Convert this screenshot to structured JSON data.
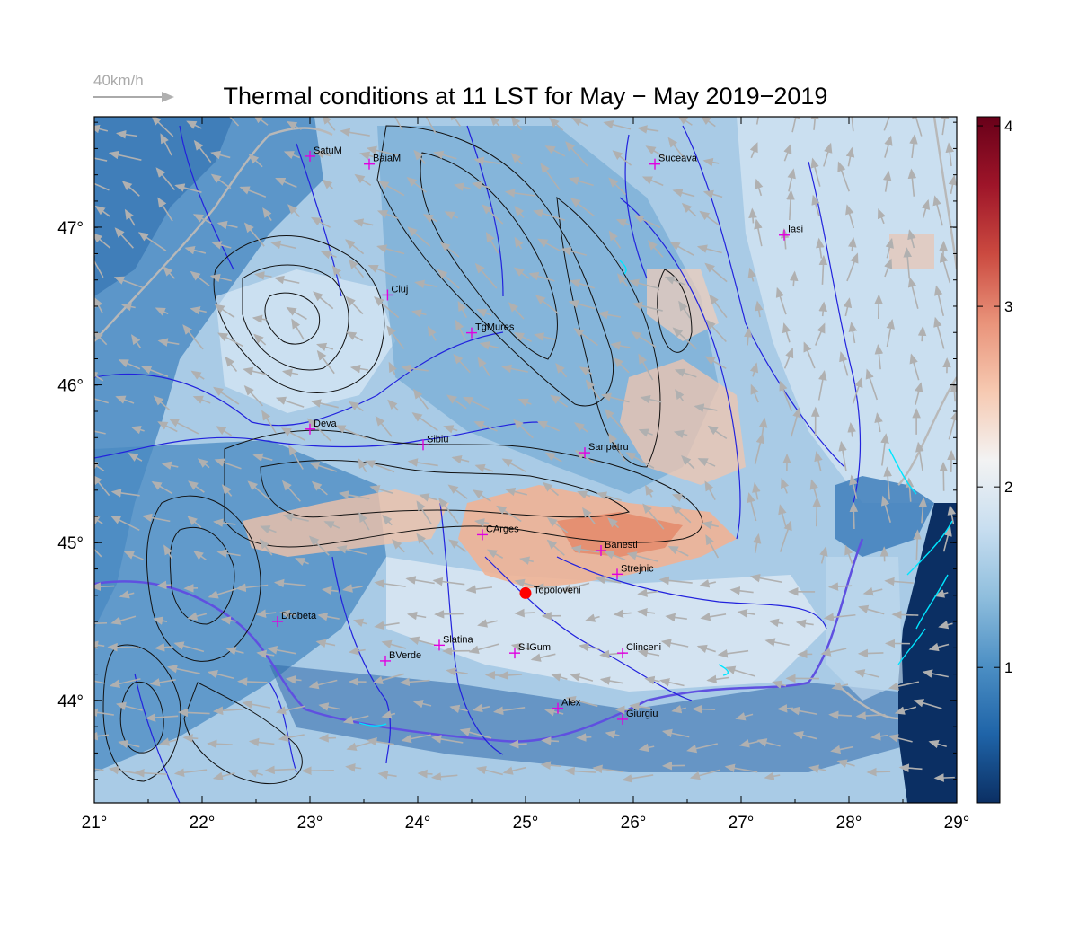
{
  "title": "Thermal conditions at 11 LST for May − May  2019−2019",
  "reference_vector": {
    "label": "40km/h",
    "value_kmh": 40,
    "color": "#aaaaaa"
  },
  "map": {
    "extent": {
      "lon_min": 21,
      "lon_max": 29,
      "lat_min": 43.35,
      "lat_max": 47.7
    },
    "lon_ticks": [
      21,
      22,
      23,
      24,
      25,
      26,
      27,
      28,
      29
    ],
    "lon_tick_labels": [
      "21°",
      "22°",
      "23°",
      "24°",
      "25°",
      "26°",
      "27°",
      "28°",
      "29°"
    ],
    "lat_ticks": [
      44,
      45,
      46,
      47
    ],
    "lat_tick_labels": [
      "44°",
      "45°",
      "46°",
      "47°"
    ],
    "city_marker_color": "#e000e0",
    "cities": [
      {
        "name": "SatuM",
        "lon": 23.0,
        "lat": 47.45
      },
      {
        "name": "BaiaM",
        "lon": 23.55,
        "lat": 47.4
      },
      {
        "name": "Suceava",
        "lon": 26.2,
        "lat": 47.4
      },
      {
        "name": "Iasi",
        "lon": 27.4,
        "lat": 46.95
      },
      {
        "name": "Cluj",
        "lon": 23.72,
        "lat": 46.57
      },
      {
        "name": "TgMures",
        "lon": 24.5,
        "lat": 46.33
      },
      {
        "name": "Deva",
        "lon": 23.0,
        "lat": 45.72
      },
      {
        "name": "Sibiu",
        "lon": 24.05,
        "lat": 45.62
      },
      {
        "name": "Sanpetru",
        "lon": 25.55,
        "lat": 45.57
      },
      {
        "name": "CArges",
        "lon": 24.6,
        "lat": 45.05
      },
      {
        "name": "Banesti",
        "lon": 25.7,
        "lat": 44.95
      },
      {
        "name": "Strejnic",
        "lon": 25.85,
        "lat": 44.8
      },
      {
        "name": "Drobeta",
        "lon": 22.7,
        "lat": 44.5
      },
      {
        "name": "Slatina",
        "lon": 24.2,
        "lat": 44.35
      },
      {
        "name": "SilGum",
        "lon": 24.9,
        "lat": 44.3
      },
      {
        "name": "Clinceni",
        "lon": 25.9,
        "lat": 44.3
      },
      {
        "name": "BVerde",
        "lon": 23.7,
        "lat": 44.25
      },
      {
        "name": "Alex",
        "lon": 25.3,
        "lat": 43.95
      },
      {
        "name": "Giurgiu",
        "lon": 25.9,
        "lat": 43.88
      }
    ],
    "highlight_site": {
      "name": "Topoloveni",
      "lon": 25.0,
      "lat": 44.68,
      "color": "#ff0000"
    }
  },
  "colorbar": {
    "min": 0.25,
    "max": 4.05,
    "tick_values": [
      1,
      2,
      3,
      4
    ],
    "tick_labels": [
      "1",
      "2",
      "3",
      "4"
    ],
    "colors": [
      "#0b2f63",
      "#1f64a8",
      "#4c8fc4",
      "#8fbedd",
      "#c8def0",
      "#f3f3f3",
      "#f6c9b1",
      "#e9937a",
      "#cb4a40",
      "#9e1529",
      "#680019"
    ]
  }
}
